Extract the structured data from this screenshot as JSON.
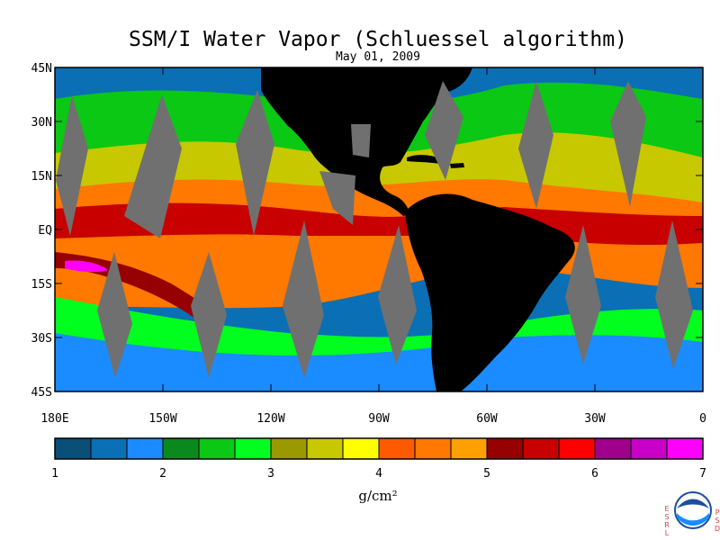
{
  "title": "SSM/I Water Vapor (Schluessel algorithm)",
  "subtitle": "May 01, 2009",
  "map": {
    "lon_range": [
      -180,
      0
    ],
    "lat_range": [
      -45,
      45
    ],
    "lat_ticks": [
      {
        "value": 45,
        "label": "45N"
      },
      {
        "value": 30,
        "label": "30N"
      },
      {
        "value": 15,
        "label": "15N"
      },
      {
        "value": 0,
        "label": "EQ"
      },
      {
        "value": -15,
        "label": "15S"
      },
      {
        "value": -30,
        "label": "30S"
      },
      {
        "value": -45,
        "label": "45S"
      }
    ],
    "lon_ticks": [
      {
        "value": -180,
        "label": "180E"
      },
      {
        "value": -150,
        "label": "150W"
      },
      {
        "value": -120,
        "label": "120W"
      },
      {
        "value": -90,
        "label": "90W"
      },
      {
        "value": -60,
        "label": "60W"
      },
      {
        "value": -30,
        "label": "30W"
      },
      {
        "value": 0,
        "label": "0"
      }
    ]
  },
  "colorbar": {
    "unit": "g/cm²",
    "min": 1,
    "max": 7,
    "labels": [
      "1",
      "2",
      "3",
      "4",
      "5",
      "6",
      "7"
    ],
    "colors": [
      "#0a4f78",
      "#0a6fb4",
      "#1a8cff",
      "#0a8a1e",
      "#0ac814",
      "#00ff1e",
      "#9a9a00",
      "#c8c800",
      "#ffff00",
      "#ff5a00",
      "#ff7800",
      "#ffa000",
      "#960000",
      "#c80000",
      "#ff0000",
      "#a0008c",
      "#c800c8",
      "#ff00ff"
    ]
  },
  "colors": {
    "land": "#000000",
    "missing": "#707070",
    "dry_ocean": "#1a6fc0"
  },
  "logo": {
    "left_letters": [
      "E",
      "S",
      "R",
      "L"
    ],
    "right_letters": [
      "P",
      "S",
      "D"
    ],
    "name": "NOAA"
  }
}
